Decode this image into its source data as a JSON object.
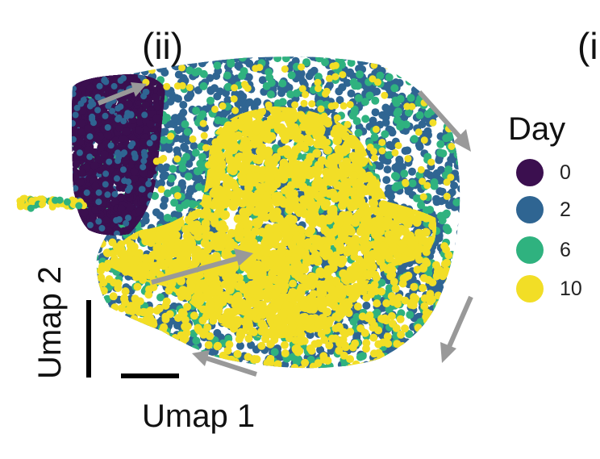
{
  "panels": {
    "left": "(ii)",
    "right": "(i"
  },
  "chart_data": {
    "type": "scatter",
    "title": "",
    "xlabel": "Umap 1",
    "ylabel": "Umap 2",
    "legend": {
      "title": "Day",
      "placement": "right",
      "entries": [
        {
          "label": "0",
          "color": "#3b0f4f"
        },
        {
          "label": "2",
          "color": "#2f6592"
        },
        {
          "label": "6",
          "color": "#2fb27f"
        },
        {
          "label": "10",
          "color": "#f2de26"
        }
      ]
    },
    "series": [
      {
        "name": "0",
        "color": "#3b0f4f"
      },
      {
        "name": "2",
        "color": "#2f6592"
      },
      {
        "name": "6",
        "color": "#2fb27f"
      },
      {
        "name": "10",
        "color": "#f2de26"
      }
    ],
    "grid": false,
    "annotations": "gray arrows indicating trajectory"
  }
}
